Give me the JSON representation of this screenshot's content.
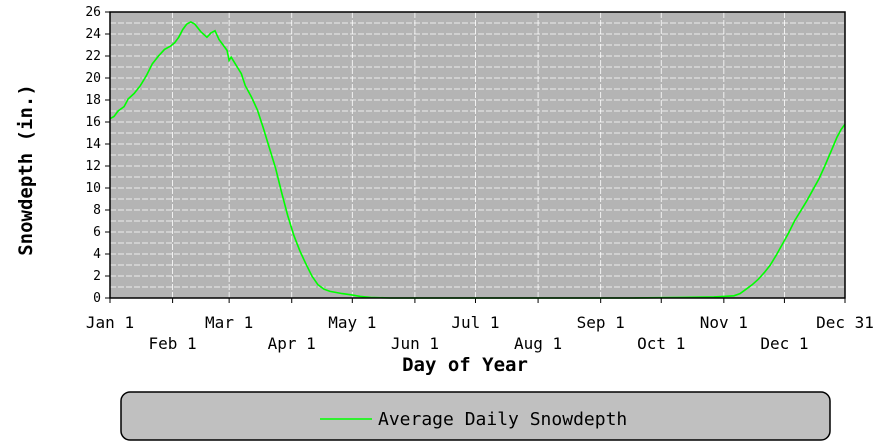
{
  "chart_data": {
    "type": "line",
    "title": "",
    "xlabel": "Day of Year",
    "ylabel": "Snowdepth (in.)",
    "xlim": [
      1,
      365
    ],
    "ylim": [
      0,
      26
    ],
    "y_ticks": [
      0,
      2,
      4,
      6,
      8,
      10,
      12,
      14,
      16,
      18,
      20,
      22,
      24,
      26
    ],
    "x_ticks": [
      {
        "day": 1,
        "label": "Jan 1",
        "row": 0
      },
      {
        "day": 32,
        "label": "Feb 1",
        "row": 1
      },
      {
        "day": 60,
        "label": "Mar 1",
        "row": 0
      },
      {
        "day": 91,
        "label": "Apr 1",
        "row": 1
      },
      {
        "day": 121,
        "label": "May 1",
        "row": 0
      },
      {
        "day": 152,
        "label": "Jun 1",
        "row": 1
      },
      {
        "day": 182,
        "label": "Jul 1",
        "row": 0
      },
      {
        "day": 213,
        "label": "Aug 1",
        "row": 1
      },
      {
        "day": 244,
        "label": "Sep 1",
        "row": 0
      },
      {
        "day": 274,
        "label": "Oct 1",
        "row": 1
      },
      {
        "day": 305,
        "label": "Nov 1",
        "row": 0
      },
      {
        "day": 335,
        "label": "Dec 1",
        "row": 1
      },
      {
        "day": 365,
        "label": "Dec 31",
        "row": 0
      }
    ],
    "grid": true,
    "legend_position": "bottom",
    "colors": {
      "plot_bg": "#b4b4b4",
      "grid": "#ffffff",
      "series": "#00ff00",
      "legend_bg": "#c0c0c0"
    },
    "series": [
      {
        "name": "Average Daily Snowdepth",
        "x": [
          1,
          3,
          5,
          8,
          10,
          13,
          16,
          19,
          22,
          25,
          28,
          31,
          33,
          35,
          37,
          39,
          41,
          43,
          46,
          49,
          51,
          53,
          55,
          57,
          59,
          60,
          61,
          62,
          64,
          66,
          68,
          71,
          74,
          77,
          80,
          83,
          86,
          89,
          92,
          95,
          98,
          101,
          104,
          107,
          110,
          113,
          116,
          120,
          125,
          130,
          140,
          150,
          200,
          260,
          285,
          300,
          305,
          310,
          313,
          316,
          319,
          322,
          325,
          328,
          331,
          334,
          337,
          340,
          343,
          346,
          349,
          352,
          355,
          358,
          361,
          363,
          365
        ],
        "values": [
          16.3,
          16.5,
          17.0,
          17.4,
          18.1,
          18.6,
          19.3,
          20.2,
          21.3,
          22.0,
          22.6,
          22.9,
          23.2,
          23.7,
          24.4,
          24.9,
          25.1,
          24.9,
          24.2,
          23.7,
          24.1,
          24.3,
          23.5,
          23.0,
          22.5,
          21.6,
          21.9,
          21.6,
          21.0,
          20.4,
          19.3,
          18.3,
          17.1,
          15.4,
          13.6,
          11.8,
          9.6,
          7.5,
          5.7,
          4.3,
          3.1,
          2.0,
          1.2,
          0.8,
          0.6,
          0.5,
          0.4,
          0.3,
          0.15,
          0.05,
          0.0,
          0.0,
          0.0,
          0.0,
          0.05,
          0.1,
          0.15,
          0.2,
          0.4,
          0.8,
          1.2,
          1.7,
          2.3,
          3.0,
          3.9,
          4.9,
          5.9,
          7.0,
          7.9,
          8.8,
          9.8,
          10.8,
          12.0,
          13.3,
          14.6,
          15.3,
          15.8
        ]
      }
    ]
  }
}
